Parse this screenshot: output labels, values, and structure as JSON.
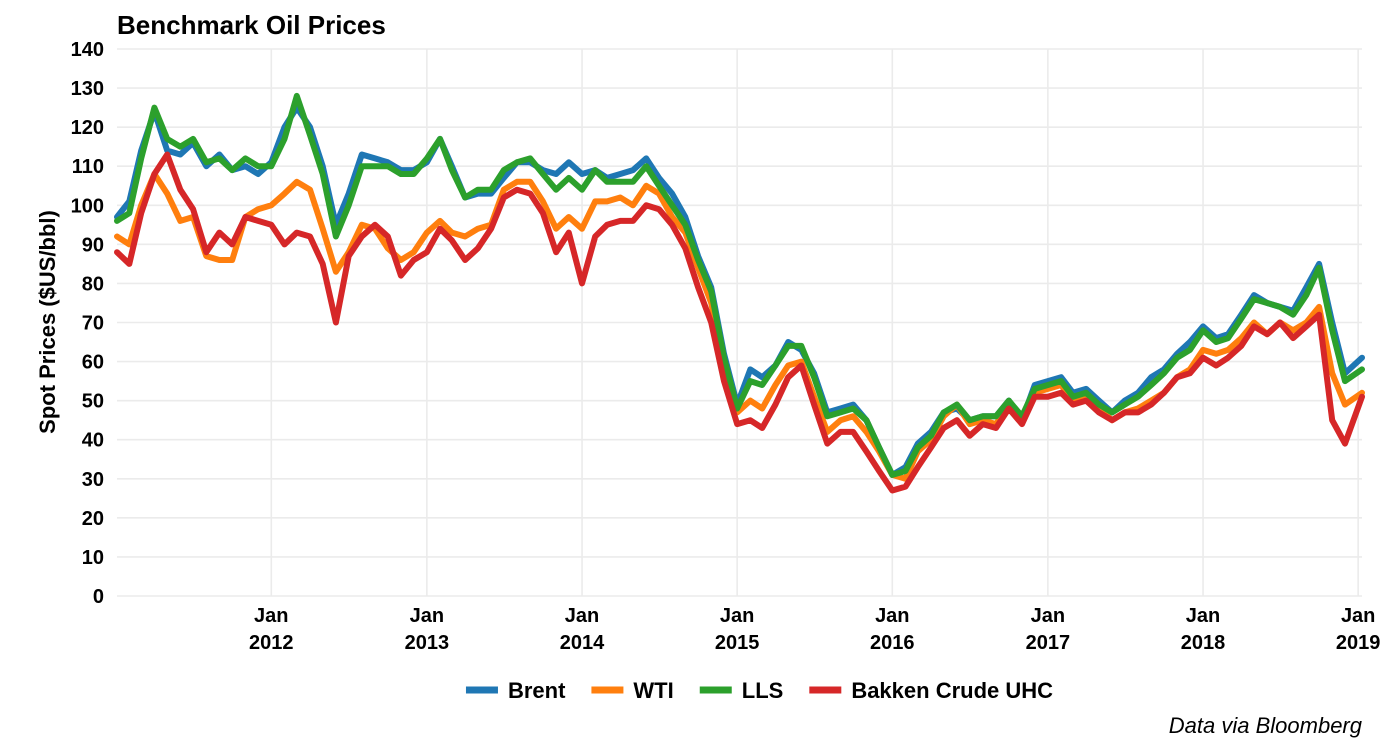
{
  "chart_data": {
    "type": "line",
    "title": "Benchmark Oil Prices",
    "ylabel": "Spot Prices ($US/bbl)",
    "xlabel": "",
    "caption": "Data via Bloomberg",
    "ylim": [
      0,
      140
    ],
    "xlim": [
      "2011-01-03",
      "2019-01-10"
    ],
    "yticks": [
      0,
      10,
      20,
      30,
      40,
      50,
      60,
      70,
      80,
      90,
      100,
      110,
      120,
      130,
      140
    ],
    "xticks": [
      {
        "date": "2012-01-01",
        "label_top": "Jan",
        "label_bottom": "2012"
      },
      {
        "date": "2013-01-01",
        "label_top": "Jan",
        "label_bottom": "2013"
      },
      {
        "date": "2014-01-01",
        "label_top": "Jan",
        "label_bottom": "2014"
      },
      {
        "date": "2015-01-01",
        "label_top": "Jan",
        "label_bottom": "2015"
      },
      {
        "date": "2016-01-01",
        "label_top": "Jan",
        "label_bottom": "2016"
      },
      {
        "date": "2017-01-01",
        "label_top": "Jan",
        "label_bottom": "2017"
      },
      {
        "date": "2018-01-01",
        "label_top": "Jan",
        "label_bottom": "2018"
      },
      {
        "date": "2019-01-01",
        "label_top": "Jan",
        "label_bottom": "2019"
      }
    ],
    "grid": true,
    "legend_position": "bottom",
    "x": [
      "2011-01-03",
      "2011-02-01",
      "2011-03-01",
      "2011-04-01",
      "2011-05-01",
      "2011-06-01",
      "2011-07-01",
      "2011-08-01",
      "2011-09-01",
      "2011-10-01",
      "2011-11-01",
      "2011-12-01",
      "2012-01-01",
      "2012-02-01",
      "2012-03-01",
      "2012-04-01",
      "2012-05-01",
      "2012-06-01",
      "2012-07-01",
      "2012-08-01",
      "2012-09-01",
      "2012-10-01",
      "2012-11-01",
      "2012-12-01",
      "2013-01-01",
      "2013-02-01",
      "2013-03-01",
      "2013-04-01",
      "2013-05-01",
      "2013-06-01",
      "2013-07-01",
      "2013-08-01",
      "2013-09-01",
      "2013-10-01",
      "2013-11-01",
      "2013-12-01",
      "2014-01-01",
      "2014-02-01",
      "2014-03-01",
      "2014-04-01",
      "2014-05-01",
      "2014-06-01",
      "2014-07-01",
      "2014-08-01",
      "2014-09-01",
      "2014-10-01",
      "2014-11-01",
      "2014-12-01",
      "2015-01-01",
      "2015-02-01",
      "2015-03-01",
      "2015-04-01",
      "2015-05-01",
      "2015-06-01",
      "2015-07-01",
      "2015-08-01",
      "2015-09-01",
      "2015-10-01",
      "2015-11-01",
      "2015-12-01",
      "2016-01-01",
      "2016-02-01",
      "2016-03-01",
      "2016-04-01",
      "2016-05-01",
      "2016-06-01",
      "2016-07-01",
      "2016-08-01",
      "2016-09-01",
      "2016-10-01",
      "2016-11-01",
      "2016-12-01",
      "2017-01-01",
      "2017-02-01",
      "2017-03-01",
      "2017-04-01",
      "2017-05-01",
      "2017-06-01",
      "2017-07-01",
      "2017-08-01",
      "2017-09-01",
      "2017-10-01",
      "2017-11-01",
      "2017-12-01",
      "2018-01-01",
      "2018-02-01",
      "2018-03-01",
      "2018-04-01",
      "2018-05-01",
      "2018-06-01",
      "2018-07-01",
      "2018-08-01",
      "2018-09-01",
      "2018-10-01",
      "2018-11-01",
      "2018-12-01",
      "2019-01-10"
    ],
    "series": [
      {
        "name": "Brent",
        "color": "#1f77b4",
        "values": [
          97,
          101,
          114,
          124,
          114,
          113,
          116,
          110,
          113,
          109,
          110,
          108,
          111,
          120,
          125,
          120,
          110,
          95,
          103,
          113,
          112,
          111,
          109,
          109,
          111,
          117,
          110,
          102,
          103,
          103,
          107,
          111,
          111,
          109,
          108,
          111,
          108,
          109,
          107,
          108,
          109,
          112,
          107,
          103,
          97,
          87,
          79,
          62,
          49,
          58,
          56,
          59,
          65,
          63,
          57,
          47,
          48,
          49,
          45,
          38,
          31,
          33,
          39,
          42,
          47,
          48,
          45,
          46,
          46,
          50,
          45,
          54,
          55,
          56,
          52,
          53,
          50,
          47,
          50,
          52,
          56,
          58,
          62,
          65,
          69,
          66,
          67,
          72,
          77,
          75,
          74,
          73,
          79,
          85,
          70,
          57,
          61
        ]
      },
      {
        "name": "WTI",
        "color": "#ff7f0e",
        "values": [
          92,
          90,
          100,
          108,
          103,
          96,
          97,
          87,
          86,
          86,
          97,
          99,
          100,
          103,
          106,
          104,
          94,
          83,
          88,
          95,
          94,
          89,
          86,
          88,
          93,
          96,
          93,
          92,
          94,
          95,
          104,
          106,
          106,
          101,
          94,
          97,
          94,
          101,
          101,
          102,
          100,
          105,
          103,
          97,
          93,
          84,
          75,
          59,
          47,
          50,
          48,
          54,
          59,
          60,
          51,
          42,
          45,
          46,
          42,
          37,
          31,
          30,
          37,
          40,
          46,
          49,
          44,
          45,
          44,
          49,
          46,
          52,
          53,
          54,
          50,
          51,
          48,
          45,
          47,
          48,
          50,
          52,
          56,
          58,
          63,
          62,
          63,
          66,
          70,
          67,
          70,
          68,
          70,
          74,
          57,
          49,
          52
        ]
      },
      {
        "name": "LLS",
        "color": "#2ca02c",
        "values": [
          96,
          98,
          112,
          125,
          117,
          115,
          117,
          111,
          112,
          109,
          112,
          110,
          110,
          117,
          128,
          118,
          108,
          92,
          100,
          110,
          110,
          110,
          108,
          108,
          112,
          117,
          109,
          102,
          104,
          104,
          109,
          111,
          112,
          108,
          104,
          107,
          104,
          109,
          106,
          106,
          106,
          110,
          105,
          100,
          95,
          86,
          78,
          61,
          48,
          55,
          54,
          59,
          64,
          64,
          56,
          46,
          47,
          48,
          45,
          38,
          31,
          32,
          38,
          41,
          47,
          49,
          45,
          46,
          46,
          50,
          46,
          53,
          54,
          55,
          51,
          52,
          49,
          47,
          49,
          51,
          54,
          57,
          61,
          63,
          68,
          65,
          66,
          71,
          76,
          75,
          74,
          72,
          77,
          84,
          68,
          55,
          58
        ]
      },
      {
        "name": "Bakken Crude UHC",
        "color": "#d62728",
        "values": [
          88,
          85,
          98,
          108,
          113,
          104,
          99,
          88,
          93,
          90,
          97,
          96,
          95,
          90,
          93,
          92,
          85,
          70,
          87,
          92,
          95,
          92,
          82,
          86,
          88,
          94,
          91,
          86,
          89,
          94,
          102,
          104,
          103,
          98,
          88,
          93,
          80,
          92,
          95,
          96,
          96,
          100,
          99,
          95,
          89,
          79,
          70,
          55,
          44,
          45,
          43,
          49,
          56,
          59,
          49,
          39,
          42,
          42,
          37,
          32,
          27,
          28,
          33,
          38,
          43,
          45,
          41,
          44,
          43,
          48,
          44,
          51,
          51,
          52,
          49,
          50,
          47,
          45,
          47,
          47,
          49,
          52,
          56,
          57,
          61,
          59,
          61,
          64,
          69,
          67,
          70,
          66,
          69,
          72,
          45,
          39,
          51
        ]
      }
    ]
  }
}
